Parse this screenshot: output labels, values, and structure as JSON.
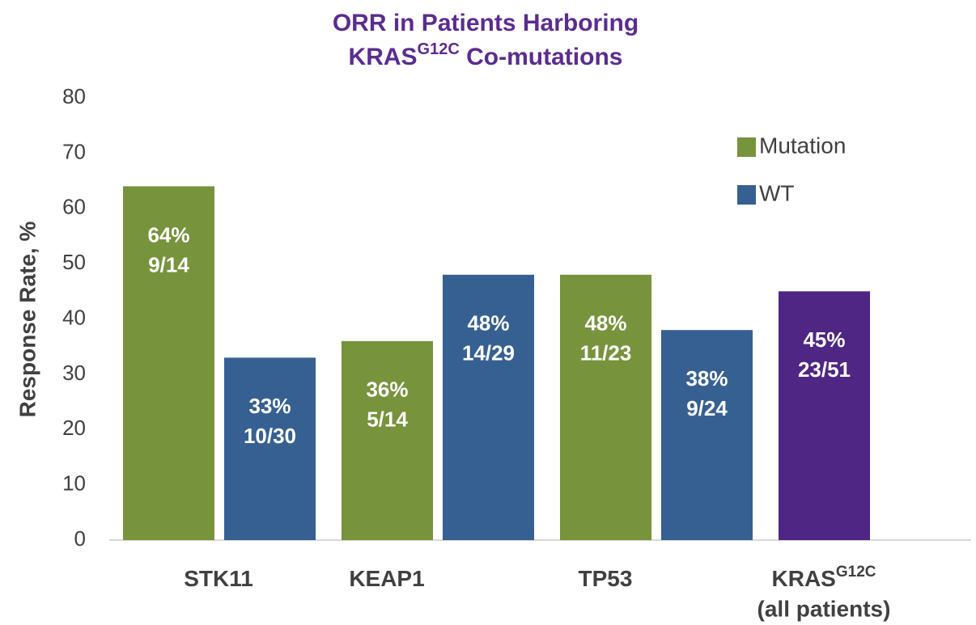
{
  "chart_data": {
    "type": "bar",
    "title": {
      "line1": "ORR in Patients Harboring",
      "line2": "KRAS",
      "line2_sup": "G12C",
      "line2_rest": " Co-mutations"
    },
    "y_label": "Response Rate, %",
    "categories": [
      {
        "name": "STK11"
      },
      {
        "name": "KEAP1"
      },
      {
        "name": "TP53"
      },
      {
        "name": "KRAS",
        "sup": "G12C",
        "note": "(all patients)"
      }
    ],
    "series": [
      {
        "name": "Mutation",
        "color": "#77933c",
        "values": [
          64,
          36,
          48,
          null
        ],
        "value_labels": [
          "64%",
          "36%",
          "48%",
          null
        ],
        "counts": [
          "9/14",
          "5/14",
          "11/23",
          null
        ]
      },
      {
        "name": "WT",
        "color": "#366092",
        "values": [
          33,
          48,
          38,
          null
        ],
        "value_labels": [
          "33%",
          "48%",
          "38%",
          null
        ],
        "counts": [
          "10/30",
          "14/29",
          "9/24",
          null
        ]
      },
      {
        "color": "#4f2683",
        "values": [
          null,
          null,
          null,
          45
        ],
        "value_labels": [
          null,
          null,
          null,
          "45%"
        ],
        "counts": [
          null,
          null,
          null,
          "23/51"
        ]
      }
    ],
    "ylim": [
      0,
      80
    ],
    "yticks": [
      0,
      10,
      20,
      30,
      40,
      50,
      60,
      70,
      80
    ],
    "grid": false,
    "legend": "top-right"
  }
}
